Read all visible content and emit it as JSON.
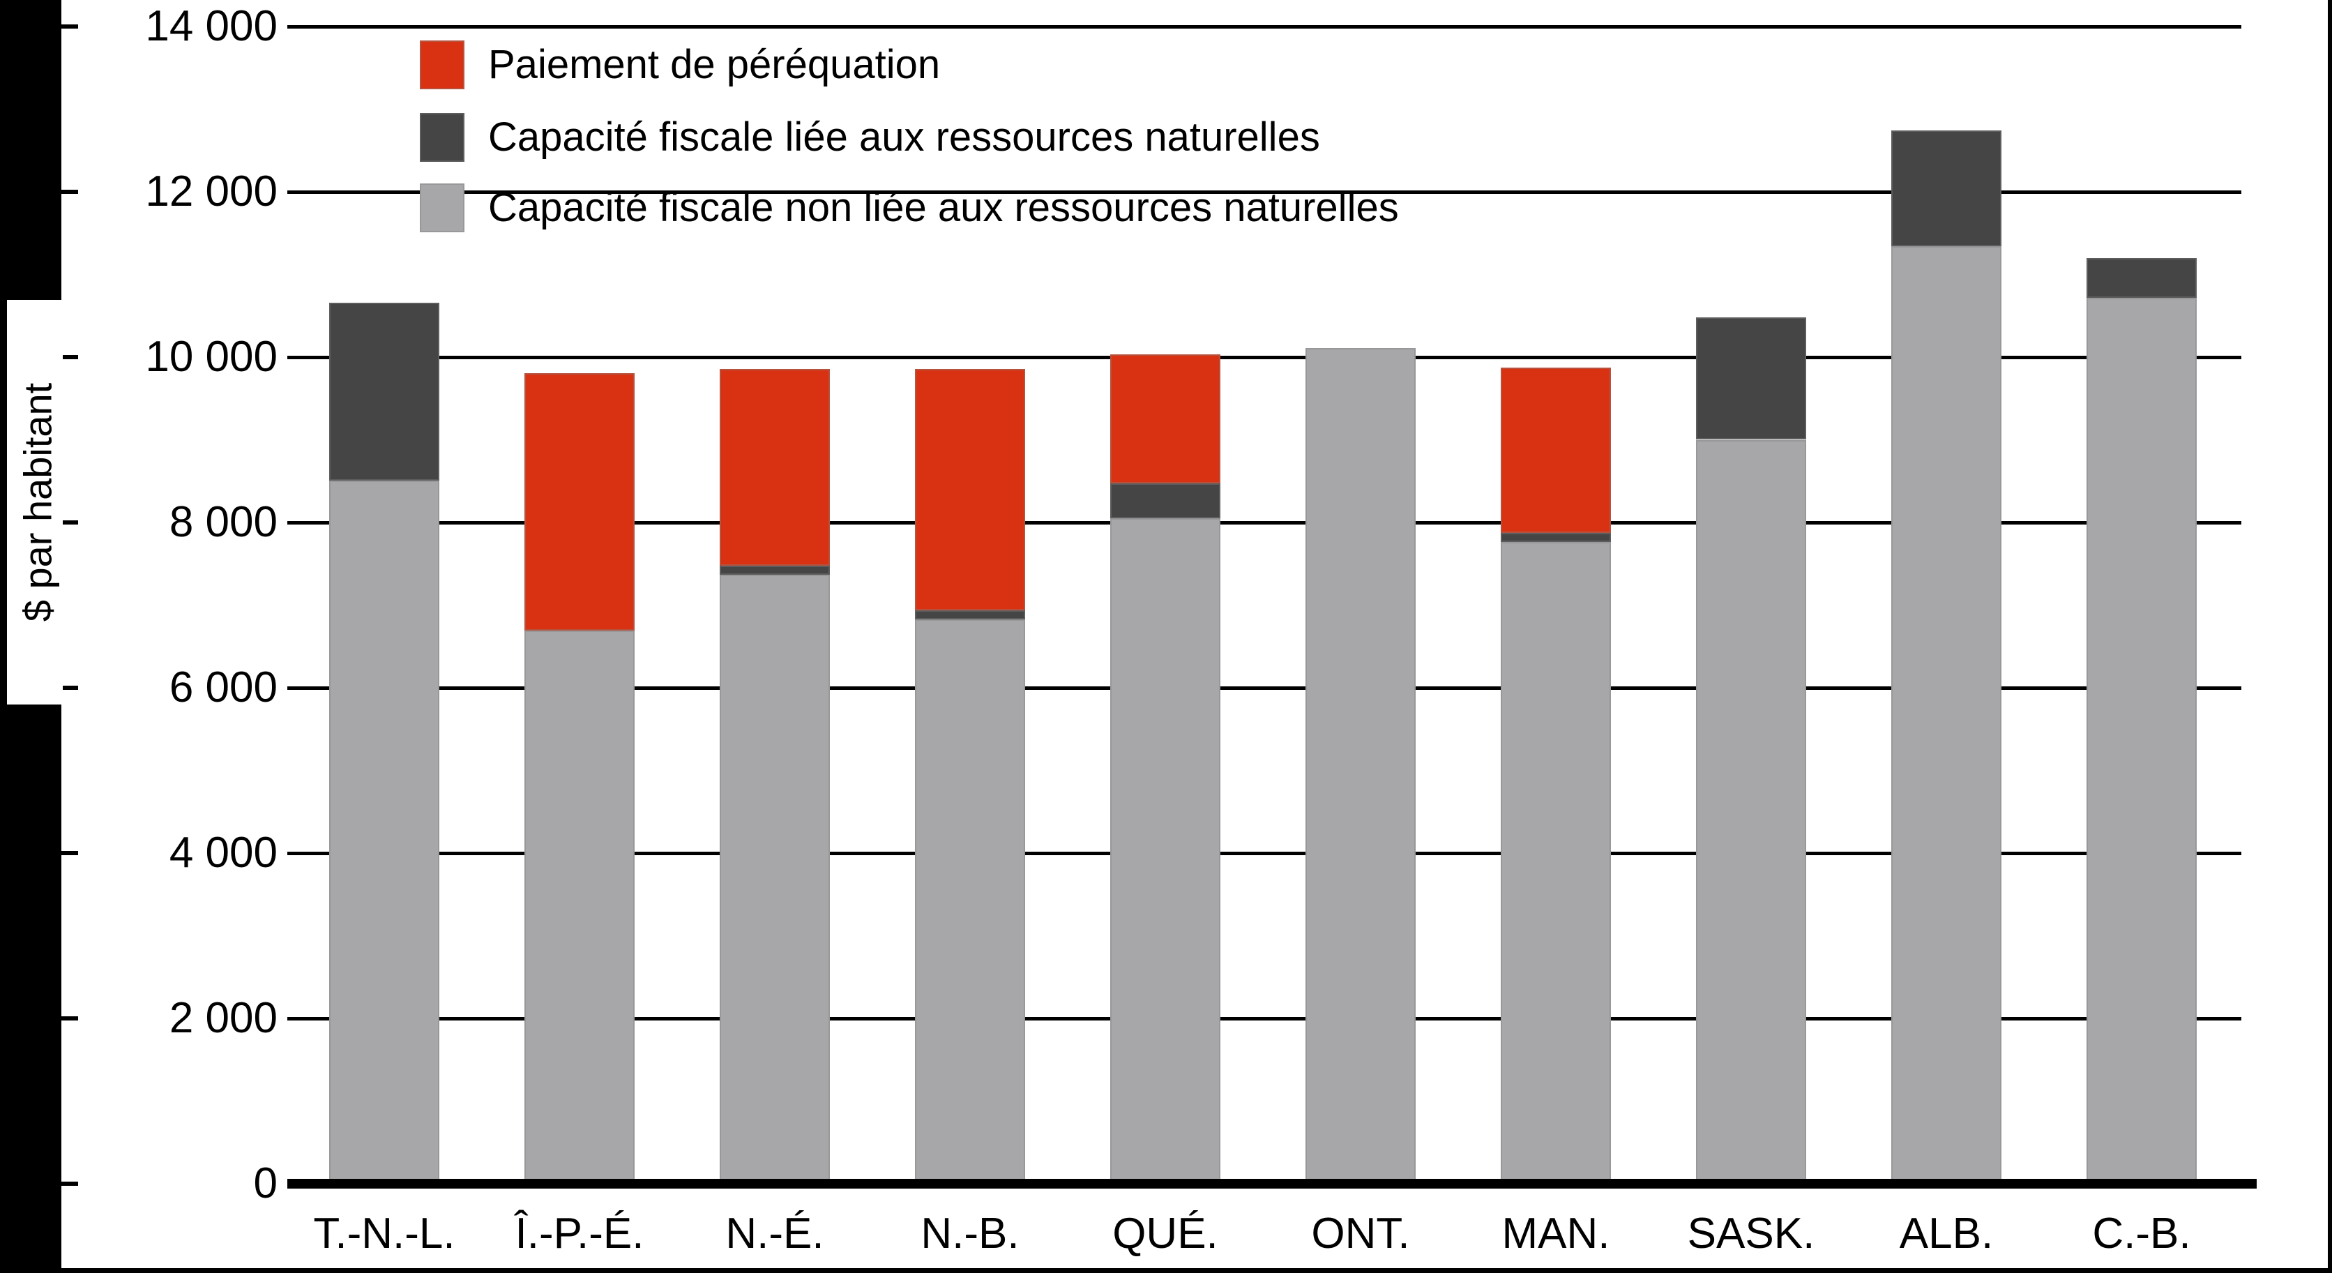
{
  "figure": {
    "background": "#FFFFFF",
    "frame_color": "#000000",
    "grid_color": "#000000",
    "bar_border_color": "#8C8C8C"
  },
  "y_axis": {
    "title": "$ par habitant",
    "title_note": "rotated 90 degrees, mostly cut off at the left edge of the image",
    "tick_values": [
      0,
      2000,
      4000,
      6000,
      8000,
      10000,
      12000,
      14000
    ],
    "tick_labels": [
      "0",
      "2 000",
      "4 000",
      "6 000",
      "8 000",
      "10 000",
      "12 000",
      "14 000"
    ]
  },
  "legend": {
    "items": [
      {
        "label": "Paiement de péréquation",
        "color": "#D93212"
      },
      {
        "label": "Capacité fiscale liée aux ressources naturelles",
        "color": "#454545"
      },
      {
        "label": "Capacité fiscale non liée aux ressources naturelles",
        "color": "#A7A7AA"
      }
    ]
  },
  "chart_data": {
    "type": "bar",
    "stacked": true,
    "title": "",
    "xlabel": "",
    "ylabel": "$ par habitant",
    "ylim": [
      0,
      14000
    ],
    "ytick_step": 2000,
    "grid": "horizontal",
    "legend_position": "top-left",
    "categories": [
      "T.-N.-L.",
      "Î.-P.-É.",
      "N.-É.",
      "N.-B.",
      "QUÉ.",
      "ONT.",
      "MAN.",
      "SASK.",
      "ALB.",
      "C.-B."
    ],
    "series": [
      {
        "name": "Capacité fiscale non liée aux ressources naturelles",
        "key": "non-resource-fiscal-capacity",
        "color": "#A7A7AA",
        "values": [
          8510,
          6690,
          7370,
          6830,
          8050,
          10110,
          7760,
          9000,
          11340,
          10720
        ]
      },
      {
        "name": "Capacité fiscale liée aux ressources naturelles",
        "key": "resource-fiscal-capacity",
        "color": "#454545",
        "values": [
          2150,
          0,
          110,
          110,
          420,
          0,
          110,
          1480,
          1400,
          480
        ]
      },
      {
        "name": "Paiement de péréquation",
        "key": "equalization-payment",
        "color": "#D93212",
        "values": [
          0,
          3120,
          2380,
          2920,
          1560,
          0,
          2000,
          0,
          0,
          0
        ]
      }
    ]
  }
}
